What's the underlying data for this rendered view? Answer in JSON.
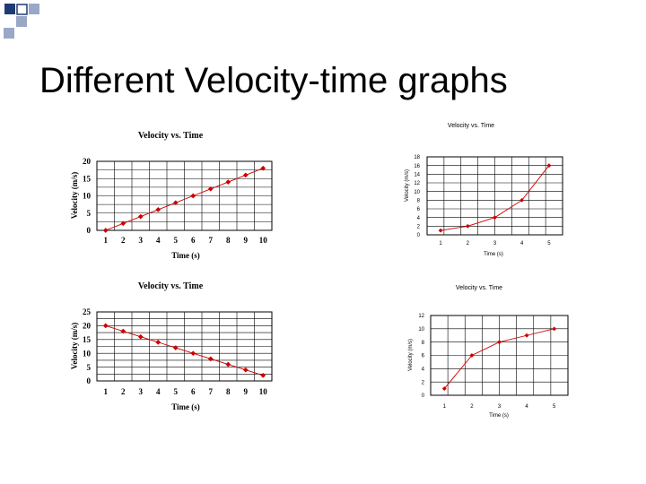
{
  "slide": {
    "title": "Different Velocity-time graphs"
  },
  "colors": {
    "series": "#cc0000",
    "deco_dark": "#1f3b73",
    "deco_light": "#9aa8c8"
  },
  "chart_data": [
    {
      "type": "line",
      "title": "Velocity vs. Time",
      "xlabel": "Time (s)",
      "ylabel": "Velocity (m/s)",
      "x": [
        1,
        2,
        3,
        4,
        5,
        6,
        7,
        8,
        9,
        10
      ],
      "ylim": [
        0,
        20
      ],
      "yticks": [
        0,
        5,
        10,
        15,
        20
      ],
      "series": [
        {
          "values": [
            0,
            2,
            4,
            6,
            8,
            10,
            12,
            14,
            16,
            18
          ]
        }
      ],
      "grid": true
    },
    {
      "type": "line",
      "title": "Velocity vs. Time",
      "xlabel": "Time (s)",
      "ylabel": "Velocity (m/s)",
      "x": [
        1,
        2,
        3,
        4,
        5
      ],
      "ylim": [
        0,
        18
      ],
      "yticks": [
        0,
        2,
        4,
        6,
        8,
        10,
        12,
        14,
        16,
        18
      ],
      "series": [
        {
          "values": [
            1,
            2,
            4,
            8,
            16
          ]
        }
      ],
      "grid": true
    },
    {
      "type": "line",
      "title": "Velocity vs. Time",
      "xlabel": "Time (s)",
      "ylabel": "Velocity (m/s)",
      "x": [
        1,
        2,
        3,
        4,
        5,
        6,
        7,
        8,
        9,
        10
      ],
      "ylim": [
        0,
        25
      ],
      "yticks": [
        0,
        5,
        10,
        15,
        20,
        25
      ],
      "series": [
        {
          "values": [
            20,
            18,
            16,
            14,
            12,
            10,
            8,
            6,
            4,
            2
          ]
        }
      ],
      "grid": true
    },
    {
      "type": "line",
      "title": "Velocity vs. Time",
      "xlabel": "Time (s)",
      "ylabel": "Velocity (m/s)",
      "x": [
        1,
        2,
        3,
        4,
        5
      ],
      "ylim": [
        0,
        12
      ],
      "yticks": [
        0,
        2,
        4,
        6,
        8,
        10,
        12
      ],
      "series": [
        {
          "values": [
            1,
            6,
            8,
            9,
            10
          ]
        }
      ],
      "grid": true
    }
  ]
}
